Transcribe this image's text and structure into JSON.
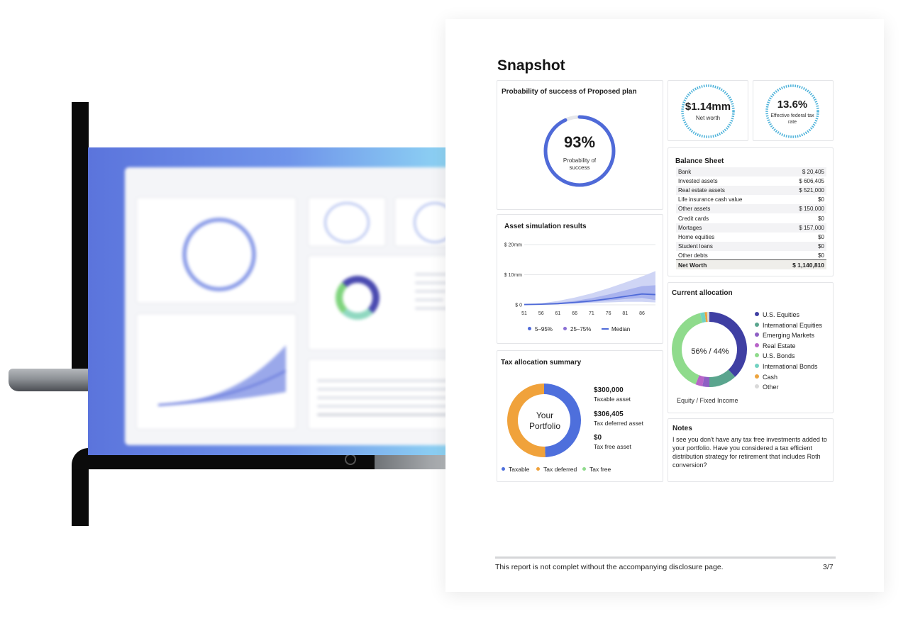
{
  "report": {
    "title": "Snapshot",
    "probability_card": {
      "title": "Probability of success of Proposed plan",
      "value": "93%",
      "label": "Probability of success",
      "fraction": 0.93
    },
    "net_worth": {
      "value": "$1.14mm",
      "label": "Net worth"
    },
    "tax_rate": {
      "value": "13.6%",
      "label": "Effective federal tax rate"
    },
    "balance_sheet": {
      "title": "Balance Sheet",
      "rows": [
        {
          "label": "Bank",
          "value": "$ 20,405"
        },
        {
          "label": "Invested assets",
          "value": "$ 606,405"
        },
        {
          "label": "Real estate assets",
          "value": "$ 521,000"
        },
        {
          "label": "Life insurance cash value",
          "value": "$0"
        },
        {
          "label": "Other assets",
          "value": "$ 150,000"
        },
        {
          "label": "Credit cards",
          "value": "$0"
        },
        {
          "label": "Mortages",
          "value": "$ 157,000"
        },
        {
          "label": "Home equities",
          "value": "$0"
        },
        {
          "label": "Student loans",
          "value": "$0"
        },
        {
          "label": "Other debts",
          "value": "$0"
        }
      ],
      "total_label": "Net  Worth",
      "total_value": "$ 1,140,810"
    },
    "asset_simulation": {
      "title": "Asset simulation results",
      "legend": [
        "5–95%",
        "25–75%",
        "Median"
      ]
    },
    "current_allocation": {
      "title": "Current  allocation",
      "center_label": "56% / 44%",
      "caption": "Equity / Fixed Income",
      "legend": [
        {
          "label": "U.S. Equities",
          "color": "#3f3fa3"
        },
        {
          "label": "International Equities",
          "color": "#5aa58e"
        },
        {
          "label": "Emerging Markets",
          "color": "#8e5fc4"
        },
        {
          "label": "Real Estate",
          "color": "#b864c8"
        },
        {
          "label": "U.S. Bonds",
          "color": "#8fdb8c"
        },
        {
          "label": "International Bonds",
          "color": "#73d2c1"
        },
        {
          "label": "Cash",
          "color": "#eda43f"
        },
        {
          "label": "Other",
          "color": "#d9d9d9"
        }
      ]
    },
    "tax_allocation": {
      "title": "Tax allocation summary",
      "center_line1": "Your",
      "center_line2": "Portfolio",
      "items": [
        {
          "value": "$300,000",
          "label": "Taxable asset"
        },
        {
          "value": "$306,405",
          "label": "Tax deferred asset"
        },
        {
          "value": "$0",
          "label": "Tax free asset"
        }
      ],
      "legend": [
        {
          "label": "Taxable",
          "color": "#4e6fdc"
        },
        {
          "label": "Tax deferred",
          "color": "#f0a23b"
        },
        {
          "label": "Tax free",
          "color": "#8fdb8c"
        }
      ]
    },
    "notes": {
      "title": "Notes",
      "text": "I see you don't have any tax free investments added to your portfolio. Have you considered a tax efficient distribution strategy for retirement that includes Roth conversion?"
    },
    "footer": {
      "text": "This report is not complet without the accompanying disclosure page.",
      "page": "3/7"
    }
  },
  "chart_data": [
    {
      "type": "area",
      "title": "Asset simulation results",
      "x": [
        51,
        56,
        61,
        66,
        71,
        76,
        81,
        86,
        90
      ],
      "ylim": [
        0,
        20
      ],
      "yticks": [
        "$ 0",
        "$ 10mm",
        "$ 20mm"
      ],
      "xticks": [
        "51",
        "56",
        "61",
        "66",
        "71",
        "76",
        "81",
        "86"
      ],
      "series": [
        {
          "name": "Median",
          "values": [
            0.1,
            0.2,
            0.4,
            0.8,
            1.3,
            2.0,
            2.8,
            3.6,
            3.4
          ]
        },
        {
          "name": "25–75%",
          "low": [
            0.1,
            0.15,
            0.3,
            0.55,
            0.9,
            1.4,
            1.9,
            2.3,
            1.6
          ],
          "high": [
            0.1,
            0.3,
            0.7,
            1.3,
            2.2,
            3.4,
            4.8,
            6.2,
            6.5
          ]
        },
        {
          "name": "5–95%",
          "low": [
            0.1,
            0.1,
            0.2,
            0.35,
            0.55,
            0.8,
            1.0,
            1.0,
            0.8
          ],
          "high": [
            0.1,
            0.5,
            1.3,
            2.4,
            3.8,
            5.5,
            7.4,
            9.4,
            11.2
          ]
        }
      ]
    },
    {
      "type": "pie",
      "title": "Current  allocation",
      "categories": [
        "U.S. Equities",
        "International Equities",
        "Emerging Markets",
        "Real Estate",
        "U.S. Bonds",
        "International Bonds",
        "Cash",
        "Other"
      ],
      "values": [
        38,
        12,
        3,
        3,
        40,
        2,
        1,
        1
      ]
    },
    {
      "type": "pie",
      "title": "Tax allocation summary",
      "categories": [
        "Taxable",
        "Tax deferred",
        "Tax free"
      ],
      "values": [
        300000,
        306405,
        0
      ]
    }
  ]
}
